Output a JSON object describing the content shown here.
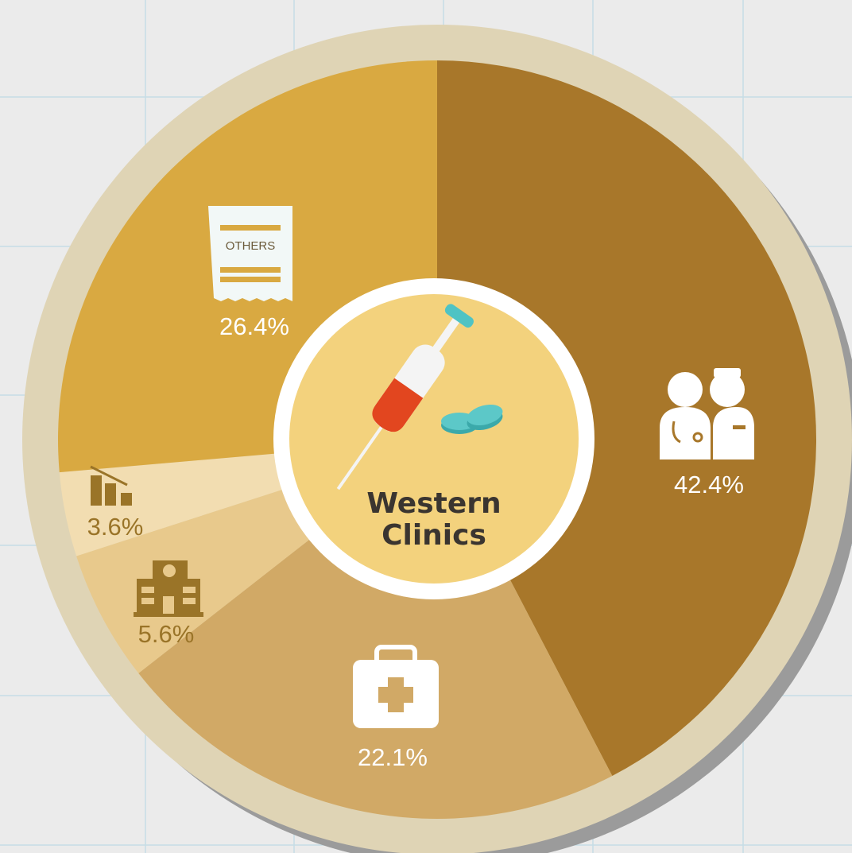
{
  "chart_data": {
    "type": "pie",
    "title": "Western Clinics",
    "icon_text": "OTHERS",
    "values": [
      42.4,
      22.1,
      5.6,
      3.6,
      26.4
    ],
    "value_labels": [
      "42.4%",
      "22.1%",
      "5.6%",
      "3.6%",
      "26.4%"
    ],
    "colors": [
      "#a8772a",
      "#d1a966",
      "#e8c98c",
      "#f2ddb1",
      "#d9a941"
    ],
    "label_colors": [
      "#ffffff",
      "#ffffff",
      "#9a7428",
      "#9a7428",
      "#ffffff"
    ]
  }
}
